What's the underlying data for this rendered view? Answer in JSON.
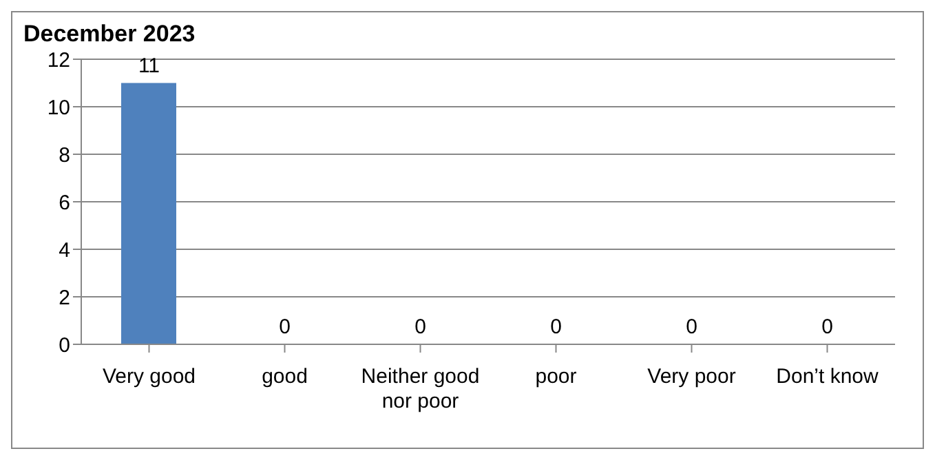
{
  "chart_data": {
    "type": "bar",
    "title": "December 2023",
    "categories": [
      "Very good",
      "good",
      "Neither good nor poor",
      "poor",
      "Very poor",
      "Don’t know"
    ],
    "values": [
      11,
      0,
      0,
      0,
      0,
      0
    ],
    "color": "#4f81bd",
    "ylim": [
      0,
      12
    ],
    "yticks": [
      0,
      2,
      4,
      6,
      8,
      10,
      12
    ],
    "grid": "y",
    "data_labels": true,
    "legend": false
  }
}
